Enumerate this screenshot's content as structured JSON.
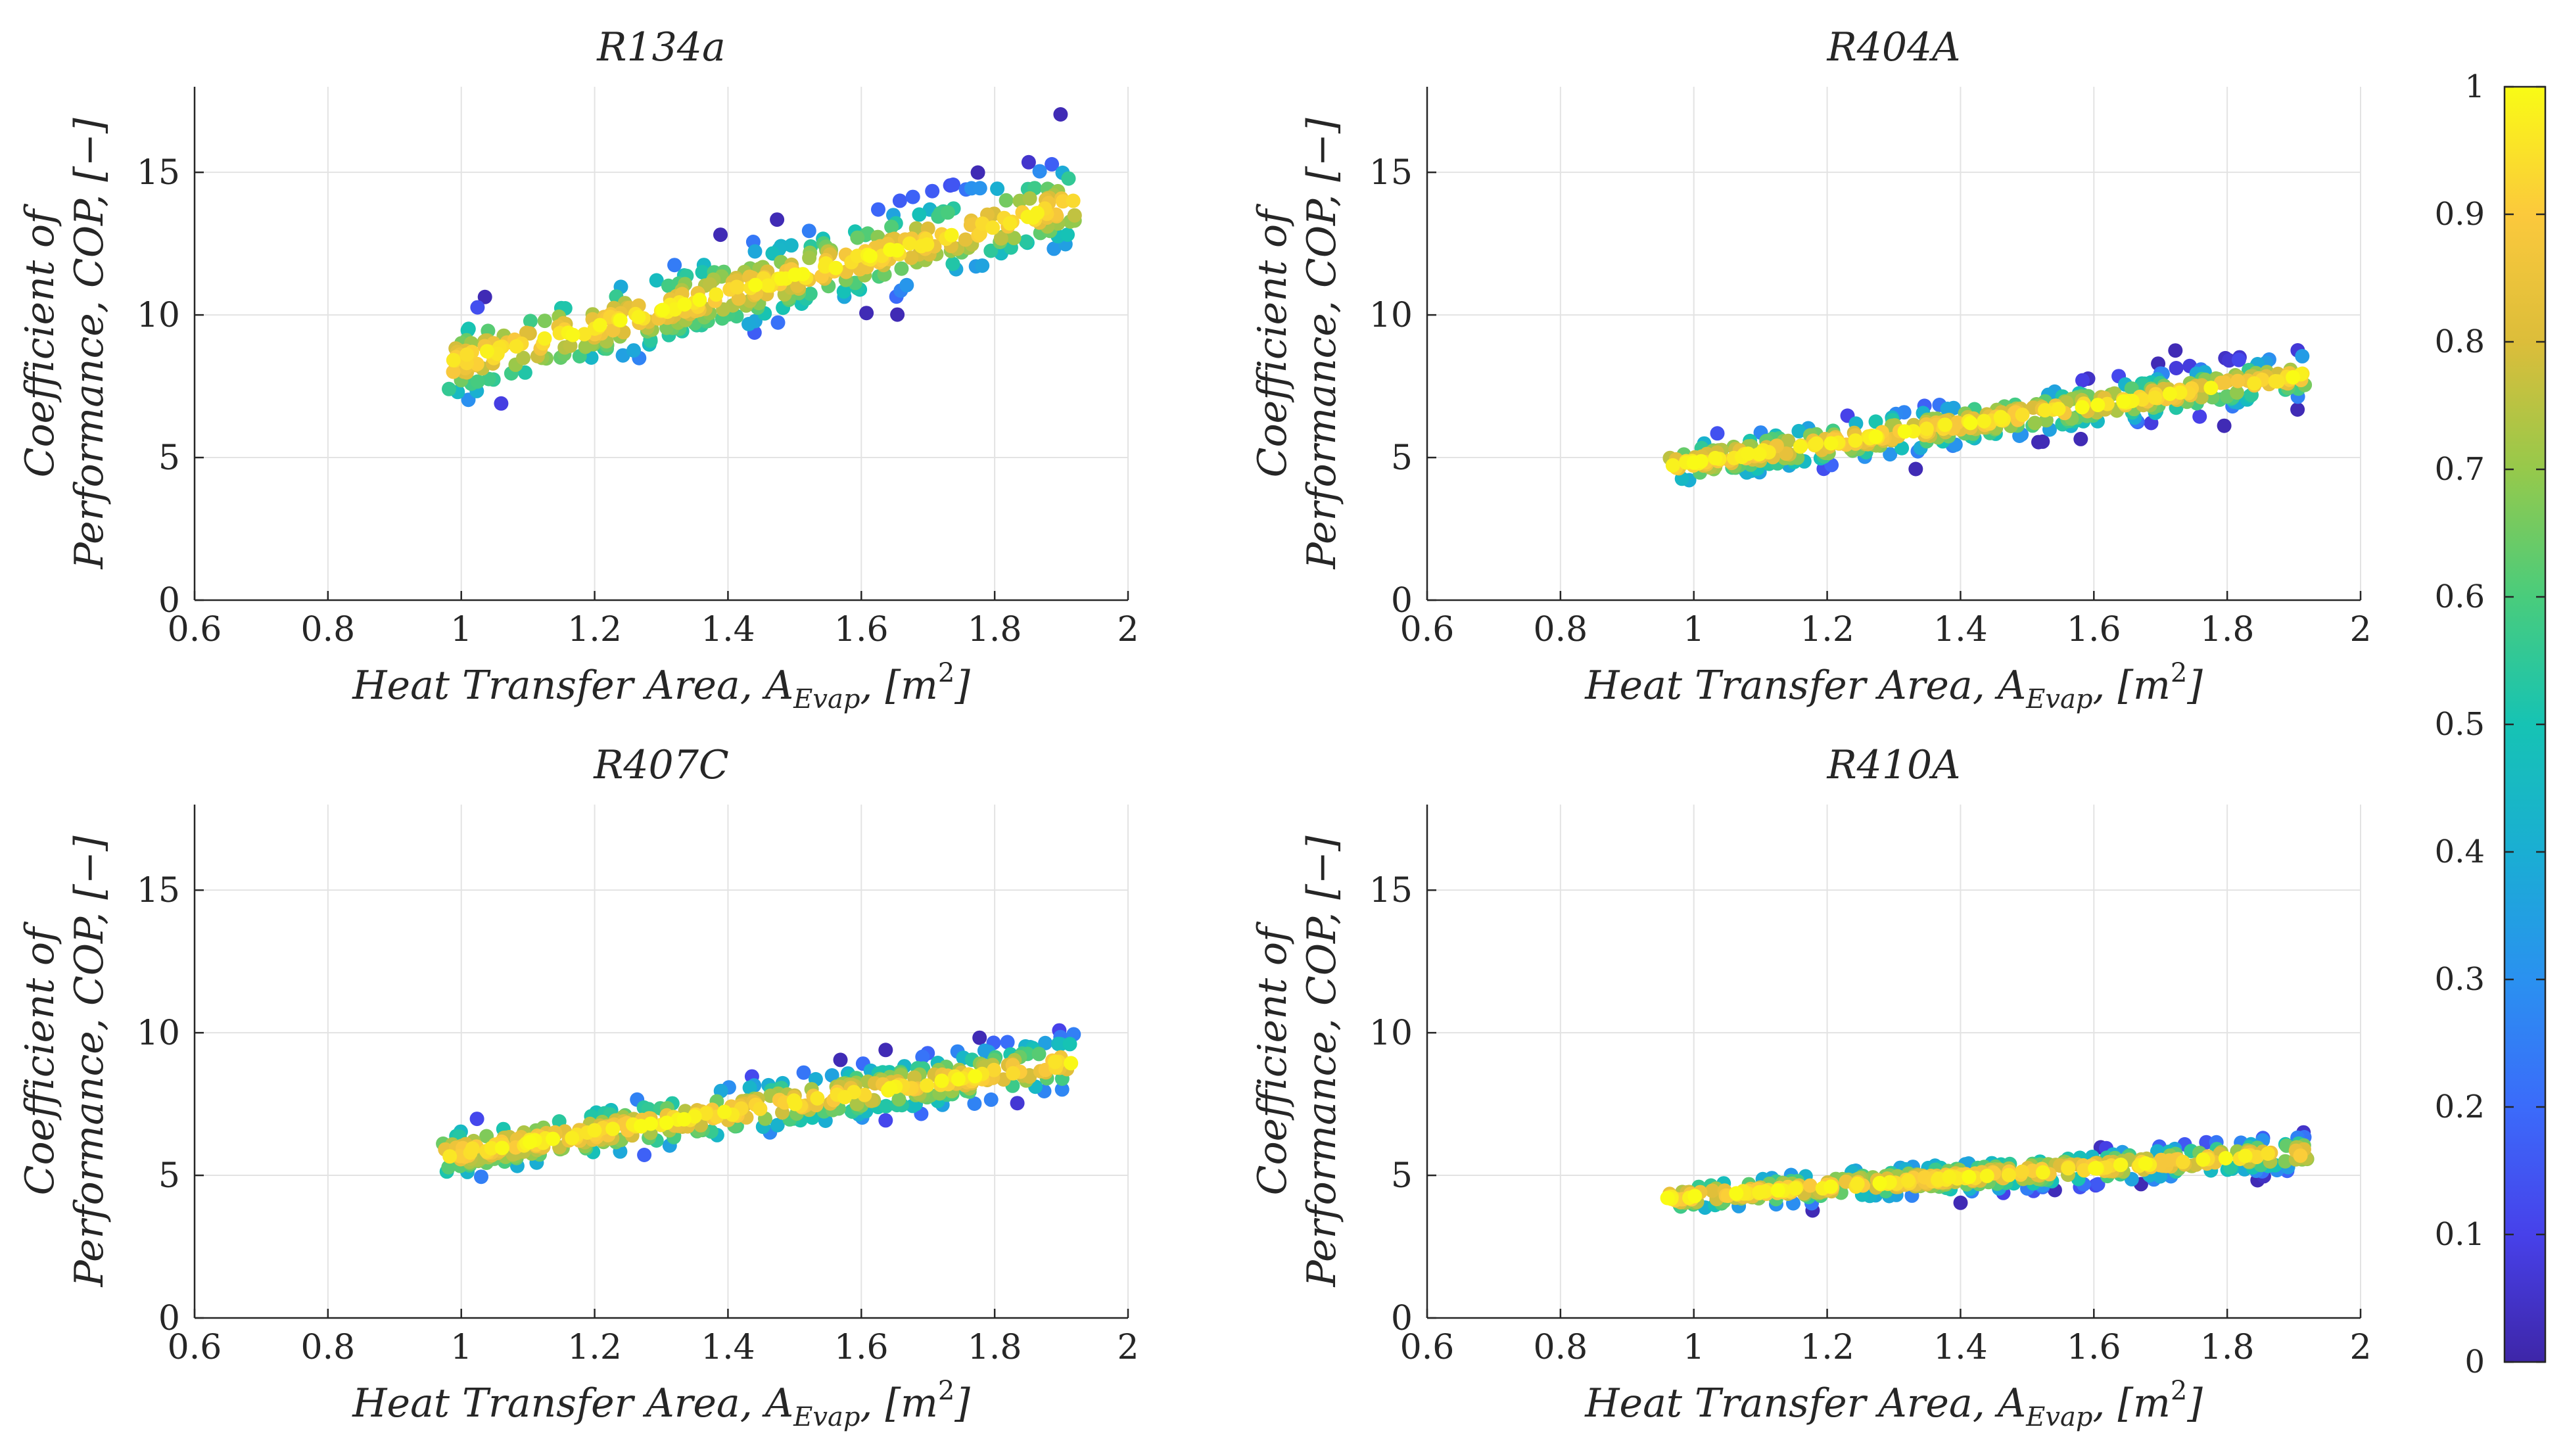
{
  "figure": {
    "colorbar": {
      "min": 0,
      "max": 1,
      "ticks": [
        "0",
        "0.1",
        "0.2",
        "0.3",
        "0.4",
        "0.5",
        "0.6",
        "0.7",
        "0.8",
        "0.9",
        "1"
      ],
      "colormap": "parula"
    }
  },
  "chart_data": [
    {
      "type": "scatter",
      "title": "R134a",
      "xlabel_main": "Heat Transfer Area, A",
      "xlabel_sub": "Evap",
      "xlabel_tail": ", [m",
      "xlabel_sup": "2",
      "xlabel_end": "]",
      "ylabel_line1": "Coefficient of",
      "ylabel_line2": "Performance, COP, [−]",
      "xlim": [
        0.6,
        2
      ],
      "ylim": [
        0,
        18
      ],
      "xticks": [
        "0.6",
        "0.8",
        "1",
        "1.2",
        "1.4",
        "1.6",
        "1.8",
        "2"
      ],
      "yticks": [
        "0",
        "5",
        "10",
        "15"
      ],
      "grid": true,
      "band": {
        "x0": 0.97,
        "x1": 1.92,
        "y0": 8.2,
        "y1": 13.9,
        "spread": 1.5,
        "jitter": 0.55
      },
      "n_points": 450,
      "seed": 11
    },
    {
      "type": "scatter",
      "title": "R404A",
      "xlabel_main": "Heat Transfer Area, A",
      "xlabel_sub": "Evap",
      "xlabel_tail": ", [m",
      "xlabel_sup": "2",
      "xlabel_end": "]",
      "ylabel_line1": "Coefficient of",
      "ylabel_line2": "Performance, COP, [−]",
      "xlim": [
        0.6,
        2
      ],
      "ylim": [
        0,
        18
      ],
      "xticks": [
        "0.6",
        "0.8",
        "1",
        "1.2",
        "1.4",
        "1.6",
        "1.8",
        "2"
      ],
      "yticks": [
        "0",
        "5",
        "10",
        "15"
      ],
      "grid": true,
      "band": {
        "x0": 0.96,
        "x1": 1.92,
        "y0": 4.7,
        "y1": 7.9,
        "spread": 0.75,
        "jitter": 0.3
      },
      "n_points": 450,
      "seed": 23
    },
    {
      "type": "scatter",
      "title": "R407C",
      "xlabel_main": "Heat Transfer Area, A",
      "xlabel_sub": "Evap",
      "xlabel_tail": ", [m",
      "xlabel_sup": "2",
      "xlabel_end": "]",
      "ylabel_line1": "Coefficient of",
      "ylabel_line2": "Performance, COP, [−]",
      "xlim": [
        0.6,
        2
      ],
      "ylim": [
        0,
        18
      ],
      "xticks": [
        "0.6",
        "0.8",
        "1",
        "1.2",
        "1.4",
        "1.6",
        "1.8",
        "2"
      ],
      "yticks": [
        "0",
        "5",
        "10",
        "15"
      ],
      "grid": true,
      "band": {
        "x0": 0.97,
        "x1": 1.92,
        "y0": 5.7,
        "y1": 9.0,
        "spread": 0.95,
        "jitter": 0.35
      },
      "n_points": 450,
      "seed": 37
    },
    {
      "type": "scatter",
      "title": "R410A",
      "xlabel_main": "Heat Transfer Area, A",
      "xlabel_sub": "Evap",
      "xlabel_tail": ", [m",
      "xlabel_sup": "2",
      "xlabel_end": "]",
      "ylabel_line1": "Coefficient of",
      "ylabel_line2": "Performance, COP, [−]",
      "xlim": [
        0.6,
        2
      ],
      "ylim": [
        0,
        18
      ],
      "xticks": [
        "0.6",
        "0.8",
        "1",
        "1.2",
        "1.4",
        "1.6",
        "1.8",
        "2"
      ],
      "yticks": [
        "0",
        "5",
        "10",
        "15"
      ],
      "grid": true,
      "band": {
        "x0": 0.96,
        "x1": 1.92,
        "y0": 4.2,
        "y1": 5.8,
        "spread": 0.55,
        "jitter": 0.22
      },
      "n_points": 450,
      "seed": 51
    }
  ]
}
